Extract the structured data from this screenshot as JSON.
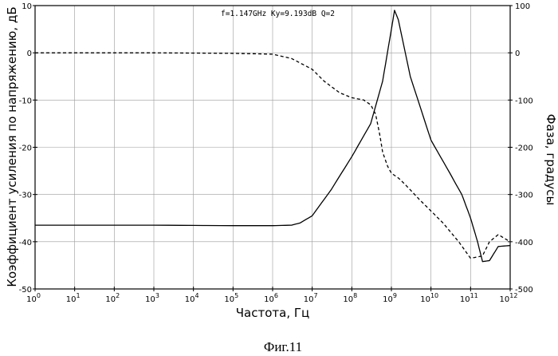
{
  "chart_data": {
    "type": "line",
    "xlabel": "Частота, Гц",
    "ylabel_left": "Коэффициент усиления по напряжению, дБ",
    "ylabel_right": "Фаза, градусы",
    "x_scale": "log",
    "xlim": [
      1,
      1000000000000.0
    ],
    "x_tick_labels": [
      "10^0",
      "10^1",
      "10^2",
      "10^3",
      "10^4",
      "10^5",
      "10^6",
      "10^7",
      "10^8",
      "10^9",
      "10^10",
      "10^11",
      "10^12"
    ],
    "ylim_left": [
      -50,
      10
    ],
    "y_ticks_left": [
      10,
      0,
      -10,
      -20,
      -30,
      -40,
      -50
    ],
    "ylim_right": [
      -500,
      100
    ],
    "y_ticks_right": [
      100,
      0,
      -100,
      -200,
      -300,
      -400,
      -500
    ],
    "grid": true,
    "annotation": "f=1.147GHz Ky=9.193dB Q=2",
    "series": [
      {
        "axis": "left",
        "style": "dashed",
        "x": [
          1,
          1000.0,
          100000.0,
          1000000.0,
          3000000.0,
          10000000.0,
          20000000.0,
          50000000.0,
          100000000.0,
          200000000.0,
          300000000.0,
          400000000.0,
          500000000.0,
          600000000.0,
          800000000.0,
          1000000000.0,
          1500000000.0,
          2000000000.0,
          3000000000.0,
          5000000000.0,
          10000000000.0,
          20000000000.0,
          50000000000.0,
          100000000000.0,
          200000000000.0,
          300000000000.0,
          500000000000.0,
          1000000000000.0
        ],
        "y": [
          0,
          0,
          -0.1,
          -0.3,
          -1.2,
          -3.5,
          -6,
          -8.5,
          -9.5,
          -10,
          -11,
          -13,
          -17,
          -21,
          -24,
          -25.5,
          -26.5,
          -27.5,
          -29,
          -31,
          -33.5,
          -36,
          -40,
          -43.5,
          -43,
          -40,
          -38.5,
          -40
        ]
      },
      {
        "axis": "right",
        "style": "solid",
        "x": [
          1,
          1000.0,
          100000.0,
          1000000.0,
          3000000.0,
          5000000.0,
          10000000.0,
          30000000.0,
          100000000.0,
          300000000.0,
          600000000.0,
          1000000000.0,
          1200000000.0,
          1500000000.0,
          3000000000.0,
          10000000000.0,
          30000000000.0,
          60000000000.0,
          100000000000.0,
          150000000000.0,
          200000000000.0,
          300000000000.0,
          500000000000.0,
          1000000000000.0
        ],
        "y": [
          -365,
          -365,
          -366,
          -366,
          -365,
          -360,
          -345,
          -290,
          -220,
          -150,
          -60,
          50,
          90,
          70,
          -50,
          -185,
          -255,
          -300,
          -350,
          -400,
          -442,
          -440,
          -410,
          -408
        ]
      }
    ]
  },
  "caption": "Фиг.11"
}
